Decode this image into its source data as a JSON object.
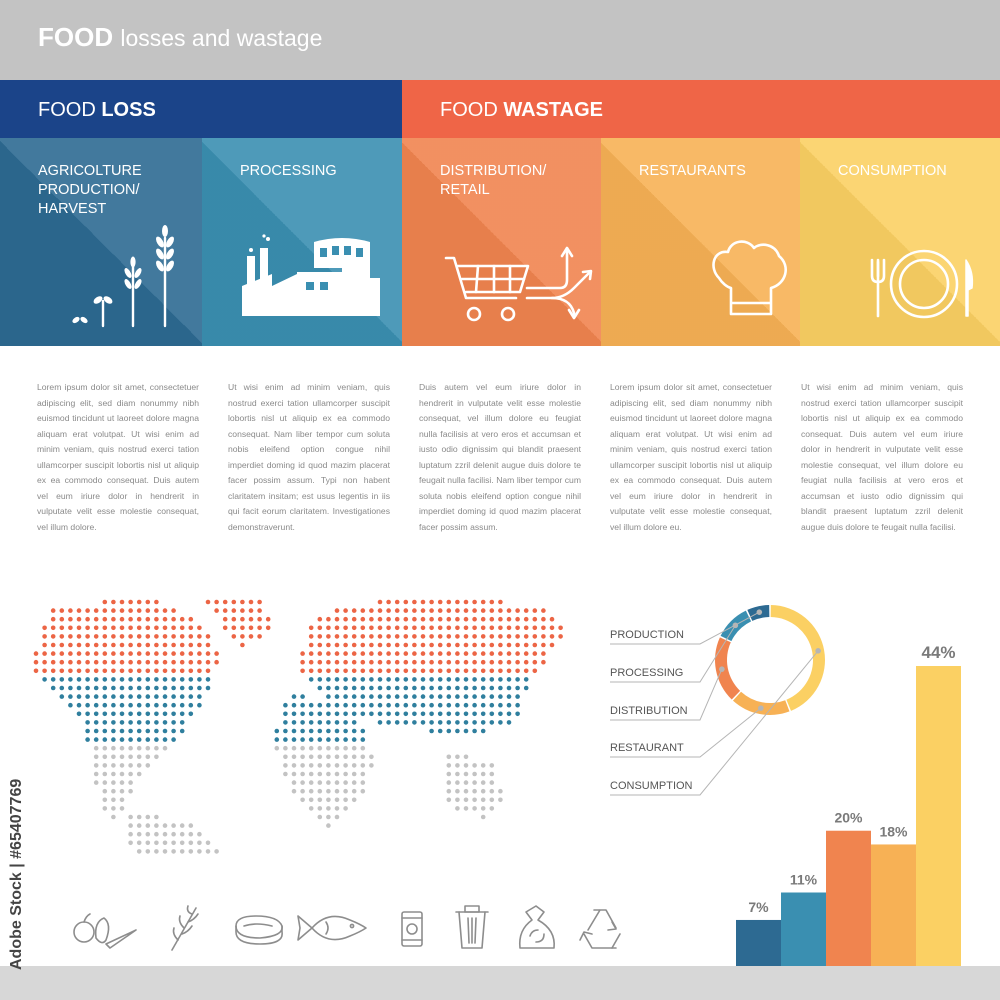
{
  "header": {
    "title_bold": "FOOD",
    "title_light": "losses and wastage"
  },
  "sections": {
    "loss": {
      "prefix": "FOOD",
      "bold": "LOSS",
      "color": "#1b4489"
    },
    "wastage": {
      "prefix": "FOOD",
      "bold": "WASTAGE",
      "color": "#ef6547"
    }
  },
  "stages": [
    {
      "label": "AGRICOLTURE\nPRODUCTION/\nHARVEST",
      "color": "#2d6a92",
      "icon": "wheat-icon"
    },
    {
      "label": "PROCESSING",
      "color": "#3a8fb1",
      "icon": "factory-icon"
    },
    {
      "label": "DISTRIBUTION/\nRETAIL",
      "color": "#f0844f",
      "icon": "cart-icon"
    },
    {
      "label": "RESTAURANTS",
      "color": "#f7b155",
      "icon": "chef-hat-icon"
    },
    {
      "label": "CONSUMPTION",
      "color": "#fbd063",
      "icon": "plate-icon"
    }
  ],
  "descriptions": [
    "Lorem ipsum dolor sit amet, consectetuer adipiscing elit, sed diam nonummy nibh euismod tincidunt ut laoreet dolore magna aliquam erat volutpat. Ut wisi enim ad minim veniam, quis nostrud exerci tation ullamcorper suscipit lobortis nisl ut aliquip ex ea commodo consequat. Duis autem vel eum iriure dolor in hendrerit in vulputate velit esse molestie consequat, vel illum dolore.",
    "Ut wisi enim ad minim veniam, quis nostrud exerci tation ullamcorper suscipit lobortis nisl ut aliquip ex ea commodo consequat. Nam liber tempor cum soluta nobis eleifend option congue nihil imperdiet doming id quod mazim placerat facer possim assum. Typi non habent claritatem insitam; est usus legentis in iis qui facit eorum claritatem. Investigationes demonstraverunt.",
    "Duis autem vel eum iriure dolor in hendrerit in vulputate velit esse molestie consequat, vel illum dolore eu feugiat nulla facilisis at vero eros et accumsan et iusto odio dignissim qui blandit praesent luptatum zzril delenit augue duis dolore te feugait nulla facilisi. Nam liber tempor cum soluta nobis eleifend option congue nihil imperdiet doming id quod mazim placerat facer possim assum.",
    "Lorem ipsum dolor sit amet, consectetuer adipiscing elit, sed diam nonummy nibh euismod tincidunt ut laoreet dolore magna aliquam erat volutpat. Ut wisi enim ad minim veniam, quis nostrud exerci tation ullamcorper suscipit lobortis nisl ut aliquip ex ea commodo consequat. Duis autem vel eum iriure dolor in hendrerit in vulputate velit esse molestie consequat, vel illum dolore eu.",
    "Ut wisi enim ad minim veniam, quis nostrud exerci tation ullamcorper suscipit lobortis nisl ut aliquip ex ea commodo consequat. Duis autem vel eum iriure dolor in hendrerit in vulputate velit esse molestie consequat, vel illum dolore eu feugiat nulla facilisis at vero eros et accumsan et iusto odio dignissim qui blandit praesent luptatum zzril delenit augue duis dolore te feugait nulla facilisi."
  ],
  "chart_data": [
    {
      "type": "pie",
      "style": "donut",
      "labels": [
        "PRODUCTION",
        "PROCESSING",
        "DISTRIBUTION",
        "RESTAURANT",
        "CONSUMPTION"
      ],
      "values": [
        7,
        11,
        20,
        18,
        44
      ],
      "colors": [
        "#2d6a92",
        "#3a8fb1",
        "#f0844f",
        "#f7b155",
        "#fbd063"
      ]
    },
    {
      "type": "bar",
      "categories": [
        "PRODUCTION",
        "PROCESSING",
        "DISTRIBUTION",
        "RESTAURANT",
        "CONSUMPTION"
      ],
      "values": [
        7,
        11,
        20,
        18,
        44
      ],
      "data_labels": [
        "7%",
        "11%",
        "20%",
        "18%",
        "44%"
      ],
      "colors": [
        "#2d6a92",
        "#3a8fb1",
        "#f0844f",
        "#f7b155",
        "#fbd063"
      ],
      "ylim": [
        0,
        44
      ],
      "grid": false
    }
  ],
  "map": {
    "north_color": "#ec6545",
    "middle_color": "#2f7f9e",
    "south_color": "#c3c3c3"
  },
  "bottom_icons": [
    "vegetables-icon",
    "wheat-icon",
    "meat-icon",
    "fish-icon",
    "can-icon",
    "trash-can-icon",
    "garbage-bag-icon",
    "recycle-icon"
  ],
  "stock_id": "Adobe Stock | #65407769"
}
